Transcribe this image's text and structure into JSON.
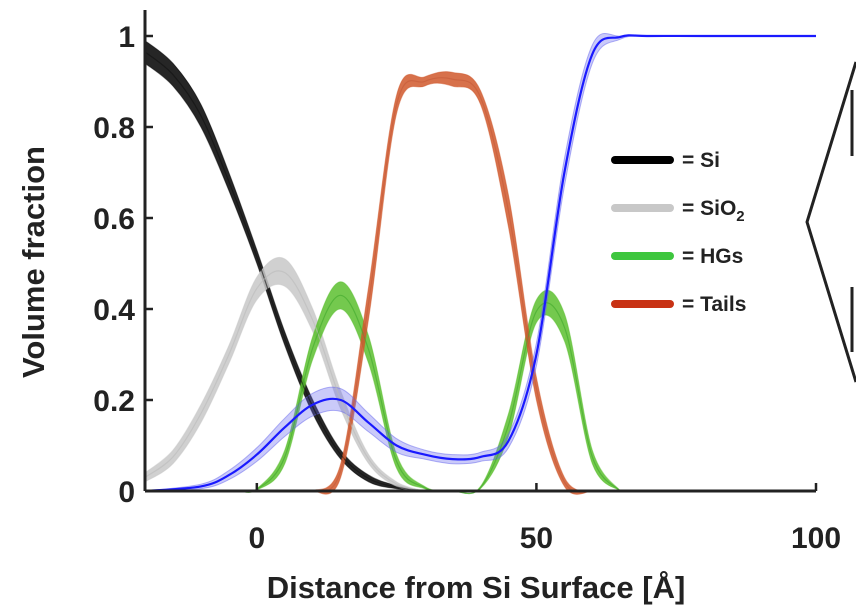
{
  "chart_data": {
    "type": "line",
    "title": "",
    "xlabel": "Distance from Si Surface [Å]",
    "ylabel": "Volume fraction",
    "xlim": [
      -20,
      100
    ],
    "ylim": [
      0,
      1.05
    ],
    "x_ticks": [
      0,
      50,
      100
    ],
    "x_tick_labels": [
      "0",
      "50",
      "100"
    ],
    "y_ticks": [
      0,
      0.2,
      0.4,
      0.6,
      0.8,
      1
    ],
    "y_tick_labels": [
      "0",
      "0.2",
      "0.4",
      "0.6",
      "0.8",
      "1"
    ],
    "grid": false,
    "legend_position": "right",
    "legend": [
      {
        "prefix": "= Si",
        "sub": "",
        "color": "#000000"
      },
      {
        "prefix": "= SiO",
        "sub": "2",
        "color": "#c8c8c8"
      },
      {
        "prefix": "= HGs",
        "sub": "",
        "color": "#3ec63e"
      },
      {
        "prefix": "= Tails",
        "sub": "",
        "color": "#c83214"
      }
    ],
    "series": [
      {
        "key": "si",
        "color": "#111111",
        "band_color": "#000000",
        "x": [
          -20,
          -15,
          -10,
          -5,
          0,
          5,
          10,
          15,
          20,
          25,
          30
        ],
        "upper": [
          0.99,
          0.94,
          0.85,
          0.7,
          0.53,
          0.35,
          0.2,
          0.09,
          0.035,
          0.012,
          0.0
        ],
        "lower": [
          0.94,
          0.89,
          0.8,
          0.66,
          0.5,
          0.32,
          0.17,
          0.07,
          0.02,
          0.005,
          0.0
        ]
      },
      {
        "key": "sio2",
        "color": "#bbbbbb",
        "band_color": "#c8c8c8",
        "x": [
          -20,
          -15,
          -10,
          -5,
          0,
          5,
          10,
          15,
          20,
          25,
          30
        ],
        "upper": [
          0.04,
          0.09,
          0.19,
          0.32,
          0.47,
          0.51,
          0.4,
          0.22,
          0.08,
          0.02,
          0.0
        ],
        "lower": [
          0.02,
          0.06,
          0.15,
          0.28,
          0.42,
          0.45,
          0.35,
          0.18,
          0.06,
          0.01,
          0.0
        ]
      },
      {
        "key": "hgs",
        "color": "#3fa82b",
        "band_color": "#5cc02f",
        "x": [
          -3,
          0,
          5,
          10,
          15,
          20,
          25,
          30,
          35,
          40,
          45,
          50,
          55,
          60,
          65
        ],
        "upper": [
          0.0,
          0.005,
          0.09,
          0.34,
          0.46,
          0.34,
          0.08,
          0.01,
          0.0,
          0.01,
          0.17,
          0.42,
          0.39,
          0.09,
          0.0
        ],
        "lower": [
          0.0,
          0.002,
          0.06,
          0.29,
          0.4,
          0.28,
          0.05,
          0.005,
          0.0,
          0.005,
          0.12,
          0.37,
          0.33,
          0.06,
          0.0
        ]
      },
      {
        "key": "tails",
        "color": "#c55a38",
        "band_color": "#d0582c",
        "x": [
          10,
          15,
          20,
          25,
          30,
          35,
          40,
          45,
          50,
          55,
          60
        ],
        "upper": [
          0.0,
          0.06,
          0.45,
          0.87,
          0.91,
          0.92,
          0.88,
          0.65,
          0.25,
          0.03,
          0.0
        ],
        "lower": [
          0.0,
          0.03,
          0.38,
          0.83,
          0.89,
          0.89,
          0.85,
          0.58,
          0.2,
          0.01,
          0.0
        ]
      },
      {
        "key": "water",
        "color": "#1a1aff",
        "band_color": "#6666ee",
        "x": [
          -20,
          -10,
          -5,
          0,
          5,
          10,
          15,
          20,
          25,
          30,
          35,
          40,
          45,
          50,
          55,
          60,
          65,
          70,
          80,
          100
        ],
        "y": [
          0.0,
          0.01,
          0.035,
          0.08,
          0.14,
          0.19,
          0.2,
          0.15,
          0.1,
          0.08,
          0.07,
          0.075,
          0.11,
          0.3,
          0.7,
          0.96,
          0.998,
          1.0,
          1.0,
          1.0
        ],
        "band": [
          0.0,
          0.005,
          0.01,
          0.015,
          0.02,
          0.025,
          0.025,
          0.02,
          0.015,
          0.01,
          0.01,
          0.01,
          0.015,
          0.025,
          0.03,
          0.02,
          0.005,
          0.0,
          0.0,
          0.0
        ]
      }
    ],
    "bracket_color": "#222222"
  }
}
